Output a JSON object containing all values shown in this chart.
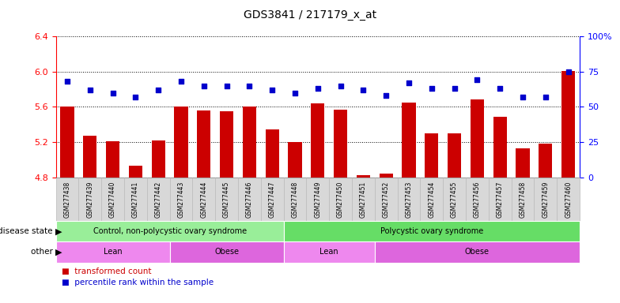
{
  "title": "GDS3841 / 217179_x_at",
  "samples": [
    "GSM277438",
    "GSM277439",
    "GSM277440",
    "GSM277441",
    "GSM277442",
    "GSM277443",
    "GSM277444",
    "GSM277445",
    "GSM277446",
    "GSM277447",
    "GSM277448",
    "GSM277449",
    "GSM277450",
    "GSM277451",
    "GSM277452",
    "GSM277453",
    "GSM277454",
    "GSM277455",
    "GSM277456",
    "GSM277457",
    "GSM277458",
    "GSM277459",
    "GSM277460"
  ],
  "bar_values": [
    5.6,
    5.27,
    5.21,
    4.93,
    5.22,
    5.6,
    5.56,
    5.55,
    5.6,
    5.34,
    5.2,
    5.64,
    5.57,
    4.82,
    4.84,
    5.65,
    5.3,
    5.3,
    5.68,
    5.49,
    5.13,
    5.18,
    6.01
  ],
  "dot_values": [
    68,
    62,
    60,
    57,
    62,
    68,
    65,
    65,
    65,
    62,
    60,
    63,
    65,
    62,
    58,
    67,
    63,
    63,
    69,
    63,
    57,
    57,
    75
  ],
  "ylim_left": [
    4.8,
    6.4
  ],
  "ylim_right": [
    0,
    100
  ],
  "yticks_left": [
    4.8,
    5.2,
    5.6,
    6.0,
    6.4
  ],
  "yticks_right": [
    0,
    25,
    50,
    75,
    100
  ],
  "bar_color": "#cc0000",
  "dot_color": "#0000cc",
  "bar_bottom": 4.8,
  "disease_state_groups": [
    {
      "label": "Control, non-polycystic ovary syndrome",
      "start": 0,
      "end": 10,
      "color": "#99ee99"
    },
    {
      "label": "Polycystic ovary syndrome",
      "start": 10,
      "end": 23,
      "color": "#66dd66"
    }
  ],
  "other_groups": [
    {
      "label": "Lean",
      "start": 0,
      "end": 5,
      "color": "#ee88ee"
    },
    {
      "label": "Obese",
      "start": 5,
      "end": 10,
      "color": "#dd66dd"
    },
    {
      "label": "Lean",
      "start": 10,
      "end": 14,
      "color": "#ee88ee"
    },
    {
      "label": "Obese",
      "start": 14,
      "end": 23,
      "color": "#dd66dd"
    }
  ],
  "legend_items": [
    {
      "label": "transformed count",
      "color": "#cc0000"
    },
    {
      "label": "percentile rank within the sample",
      "color": "#0000cc"
    }
  ],
  "disease_state_label": "disease state",
  "other_label": "other"
}
